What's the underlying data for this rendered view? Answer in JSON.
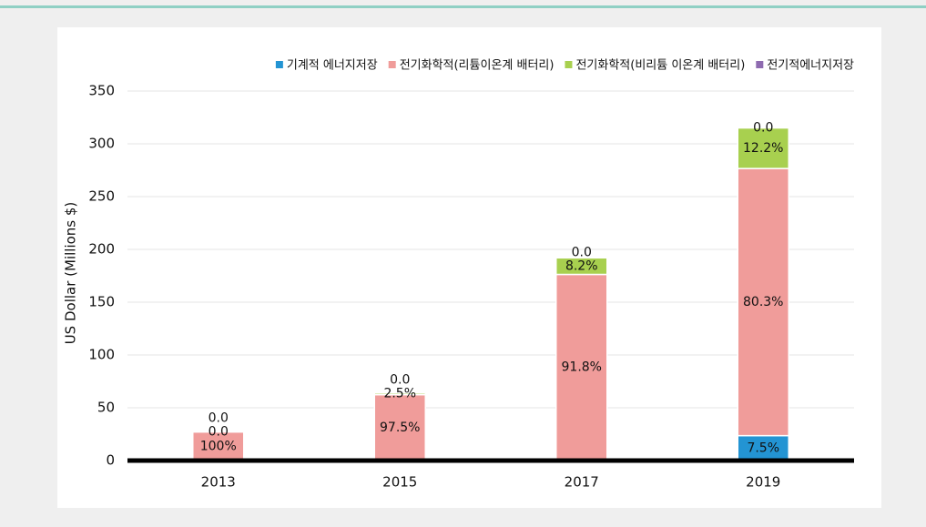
{
  "chart_data": {
    "type": "bar",
    "stacked": true,
    "y_label": "US Dollar (Millions $)",
    "categories": [
      "2013",
      "2015",
      "2017",
      "2019"
    ],
    "series": [
      {
        "name": "기계적 에너지저장",
        "color": "#2394d3",
        "values": [
          0,
          0,
          0,
          23.6
        ],
        "value_labels": [
          null,
          null,
          null,
          "7.5%"
        ]
      },
      {
        "name": "전기화학적(리튬이온계 배터리)",
        "color": "#f09c9a",
        "values": [
          27,
          62.4,
          176.3,
          253
        ],
        "value_labels": [
          "100%",
          "97.5%",
          "91.8%",
          "80.3%"
        ]
      },
      {
        "name": "전기화학적(비리튬 이온계 배터리)",
        "color": "#a8d04f",
        "values": [
          0,
          1.6,
          15.7,
          38.4
        ],
        "value_labels": [
          "0.0",
          "2.5%",
          "8.2%",
          "12.2%"
        ]
      },
      {
        "name": "전기적에너지저장",
        "color": "#8e6bb0",
        "values": [
          0,
          0,
          0,
          0
        ],
        "value_labels": [
          "0.0",
          "0.0",
          "0.0",
          "0.0"
        ]
      }
    ],
    "ylim": [
      0,
      350
    ],
    "yticks": [
      0,
      50,
      100,
      150,
      200,
      250,
      300,
      350
    ],
    "grid": true,
    "legend": "top-right"
  }
}
